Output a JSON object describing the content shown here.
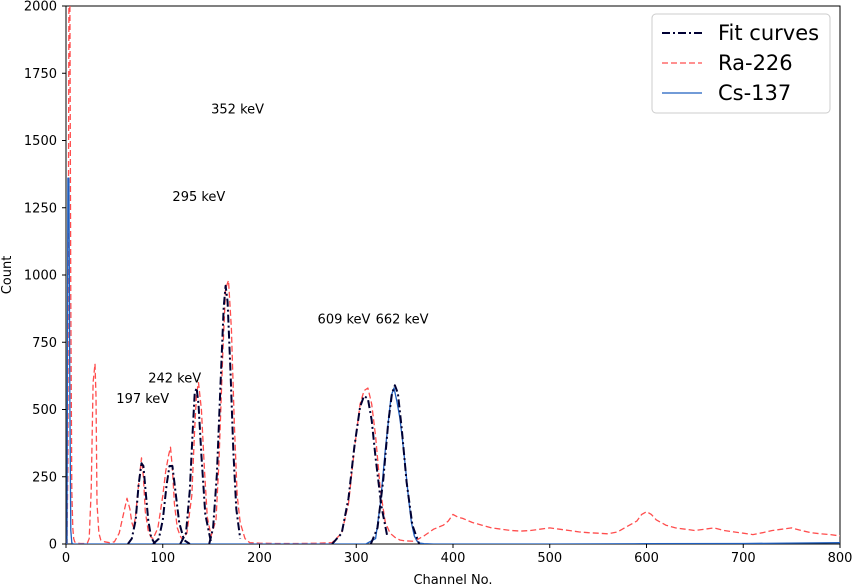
{
  "chart_data": {
    "type": "line",
    "xlabel": "Channel No.",
    "ylabel": "Count",
    "xlim": [
      0,
      800
    ],
    "ylim": [
      0,
      2000
    ],
    "x_ticks": [
      0,
      100,
      200,
      300,
      400,
      500,
      600,
      700,
      800
    ],
    "y_ticks": [
      0,
      250,
      500,
      750,
      1000,
      1250,
      1500,
      1750,
      2000
    ],
    "grid": false,
    "legend_position": "top-right",
    "legend": [
      {
        "label": "Fit curves",
        "color": "#000033",
        "style": "dashdot"
      },
      {
        "label": "Ra-226",
        "color": "#ff4d4d",
        "style": "dashed"
      },
      {
        "label": "Cs-137",
        "color": "#1f5fbf",
        "style": "solid"
      }
    ],
    "annotations": [
      {
        "text": "352 keV",
        "x": 150,
        "y": 1600
      },
      {
        "text": "295 keV",
        "x": 110,
        "y": 1275
      },
      {
        "text": "609 keV",
        "x": 260,
        "y": 820
      },
      {
        "text": "662 keV",
        "x": 320,
        "y": 820
      },
      {
        "text": "242 keV",
        "x": 85,
        "y": 600
      },
      {
        "text": "197 keV",
        "x": 52,
        "y": 525
      }
    ],
    "series": [
      {
        "name": "Ra-226",
        "color": "#ff4d4d",
        "style": "dashed",
        "x": [
          0,
          1,
          2,
          3,
          4,
          5,
          6,
          7,
          8,
          9,
          10,
          12,
          15,
          18,
          20,
          22,
          24,
          26,
          28,
          30,
          31,
          32,
          34,
          36,
          40,
          45,
          50,
          55,
          60,
          63,
          66,
          68,
          70,
          72,
          75,
          78,
          80,
          82,
          85,
          88,
          90,
          95,
          100,
          103,
          106,
          108,
          110,
          112,
          115,
          118,
          120,
          125,
          130,
          133,
          135,
          137,
          140,
          143,
          146,
          150,
          155,
          158,
          162,
          165,
          168,
          171,
          174,
          177,
          180,
          185,
          190,
          200,
          215,
          240,
          260,
          275,
          285,
          292,
          298,
          304,
          308,
          312,
          316,
          320,
          325,
          330,
          335,
          340,
          345,
          350,
          360,
          370,
          380,
          390,
          395,
          400,
          405,
          410,
          420,
          430,
          440,
          450,
          460,
          470,
          480,
          490,
          500,
          510,
          520,
          530,
          540,
          550,
          560,
          570,
          580,
          590,
          595,
          600,
          605,
          610,
          620,
          630,
          640,
          650,
          660,
          670,
          680,
          690,
          700,
          710,
          720,
          730,
          740,
          750,
          760,
          770,
          780,
          790,
          800
        ],
        "y": [
          0,
          0,
          300,
          2000,
          2000,
          900,
          200,
          60,
          20,
          8,
          5,
          3,
          2,
          2,
          2,
          3,
          20,
          200,
          600,
          670,
          550,
          150,
          40,
          15,
          8,
          5,
          8,
          40,
          120,
          170,
          130,
          80,
          60,
          110,
          220,
          320,
          250,
          120,
          50,
          25,
          20,
          60,
          180,
          270,
          330,
          360,
          280,
          150,
          60,
          30,
          18,
          40,
          180,
          430,
          560,
          600,
          500,
          280,
          100,
          30,
          90,
          300,
          700,
          950,
          980,
          800,
          450,
          180,
          80,
          20,
          5,
          3,
          2,
          2,
          3,
          5,
          40,
          150,
          350,
          520,
          570,
          580,
          520,
          400,
          200,
          80,
          40,
          25,
          15,
          12,
          10,
          30,
          55,
          70,
          85,
          110,
          100,
          95,
          80,
          70,
          60,
          55,
          50,
          48,
          50,
          55,
          60,
          55,
          50,
          45,
          42,
          40,
          38,
          45,
          65,
          85,
          110,
          120,
          110,
          90,
          70,
          60,
          55,
          50,
          55,
          60,
          50,
          45,
          40,
          35,
          42,
          50,
          55,
          60,
          50,
          42,
          38,
          35,
          30
        ]
      },
      {
        "name": "Cs-137",
        "color": "#1f5fbf",
        "style": "solid",
        "x": [
          0,
          1,
          2,
          3,
          4,
          5,
          6,
          7,
          8,
          10,
          20,
          100,
          200,
          300,
          310,
          320,
          325,
          330,
          333,
          336,
          339,
          342,
          345,
          348,
          351,
          354,
          357,
          360,
          363,
          366,
          370,
          380,
          400,
          500,
          600,
          700,
          800
        ],
        "y": [
          0,
          0,
          1360,
          1360,
          500,
          50,
          5,
          1,
          0,
          0,
          0,
          0,
          0,
          0,
          0,
          20,
          150,
          350,
          450,
          550,
          580,
          530,
          470,
          380,
          280,
          170,
          80,
          30,
          10,
          3,
          1,
          0,
          0,
          0,
          1,
          2,
          5
        ]
      },
      {
        "name": "Fit curves",
        "color": "#000033",
        "style": "dashdot",
        "segments": [
          {
            "x": [
              64,
              68,
              72,
              75,
              78,
              80,
              82,
              85,
              88,
              92
            ],
            "y": [
              0,
              20,
              90,
              220,
              300,
              290,
              210,
              90,
              25,
              0
            ]
          },
          {
            "x": [
              90,
              96,
              100,
              104,
              107,
              110,
              113,
              117,
              122,
              128
            ],
            "y": [
              0,
              20,
              90,
              220,
              290,
              290,
              200,
              80,
              15,
              0
            ]
          },
          {
            "x": [
              118,
              124,
              128,
              131,
              133,
              135,
              137,
              140,
              144,
              150
            ],
            "y": [
              0,
              40,
              200,
              420,
              560,
              580,
              520,
              330,
              110,
              5
            ]
          },
          {
            "x": [
              148,
              152,
              156,
              160,
              163,
              165,
              167,
              170,
              173,
              176,
              180
            ],
            "y": [
              0,
              60,
              260,
              620,
              880,
              960,
              900,
              640,
              340,
              130,
              20
            ]
          },
          {
            "x": [
              275,
              285,
              292,
              298,
              304,
              308,
              312,
              316,
              320,
              326,
              332
            ],
            "y": [
              0,
              40,
              170,
              360,
              510,
              550,
              540,
              460,
              320,
              140,
              30
            ]
          },
          {
            "x": [
              315,
              322,
              328,
              333,
              337,
              340,
              343,
              347,
              352,
              358,
              365
            ],
            "y": [
              0,
              60,
              240,
              450,
              560,
              590,
              560,
              430,
              230,
              70,
              0
            ]
          }
        ]
      }
    ]
  }
}
